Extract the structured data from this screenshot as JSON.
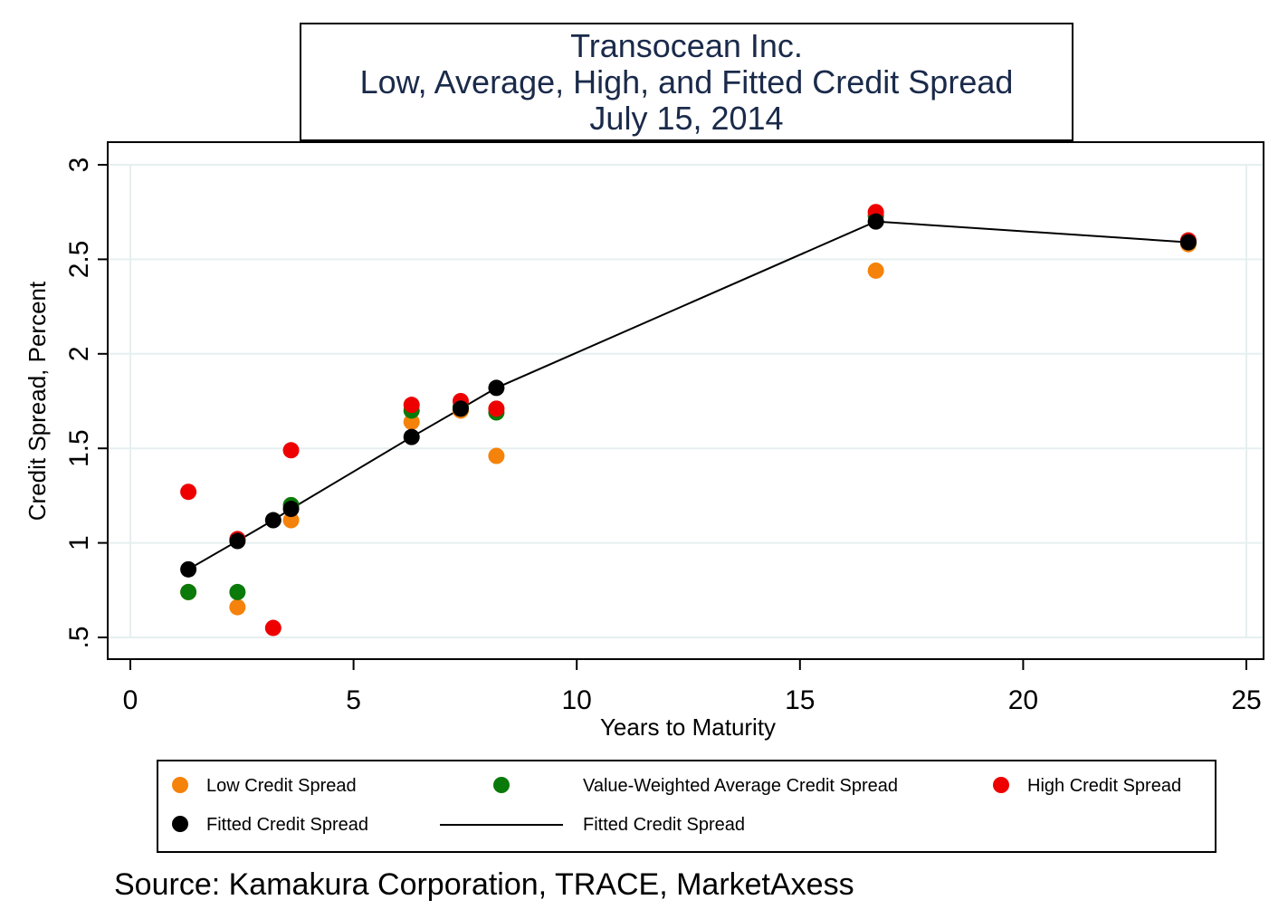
{
  "chart_data": {
    "type": "scatter",
    "title": [
      "Transocean Inc.",
      "Low, Average, High, and Fitted Credit Spread",
      "July 15, 2014"
    ],
    "xlabel": "Years to Maturity",
    "ylabel": "Credit Spread, Percent",
    "xlim": [
      0,
      25
    ],
    "ylim": [
      0.5,
      3
    ],
    "xticks": [
      "0",
      "5",
      "10",
      "15",
      "20",
      "25"
    ],
    "yticks": [
      ".5",
      "1",
      "1.5",
      "2",
      "2.5",
      "3"
    ],
    "grid": true,
    "legend_placement": "bottom",
    "source": "Source: Kamakura Corporation, TRACE, MarketAxess",
    "series": [
      {
        "name": "Low Credit Spread",
        "color": "#f5820a",
        "marker": "dot",
        "points": [
          [
            1.3,
            0.74
          ],
          [
            2.4,
            0.66
          ],
          [
            3.6,
            1.12
          ],
          [
            6.3,
            1.64
          ],
          [
            7.4,
            1.7
          ],
          [
            8.2,
            1.46
          ],
          [
            16.7,
            2.44
          ],
          [
            23.7,
            2.58
          ]
        ]
      },
      {
        "name": "Value-Weighted Average Credit Spread",
        "color": "#0a7a0a",
        "marker": "dot",
        "points": [
          [
            1.3,
            0.74
          ],
          [
            2.4,
            0.74
          ],
          [
            3.6,
            1.2
          ],
          [
            6.3,
            1.7
          ],
          [
            7.4,
            1.72
          ],
          [
            8.2,
            1.69
          ],
          [
            16.7,
            2.73
          ],
          [
            23.7,
            2.59
          ]
        ]
      },
      {
        "name": "High Credit Spread",
        "color": "#ee0000",
        "marker": "dot",
        "points": [
          [
            1.3,
            1.27
          ],
          [
            2.4,
            1.02
          ],
          [
            3.2,
            0.55
          ],
          [
            3.6,
            1.49
          ],
          [
            6.3,
            1.73
          ],
          [
            7.4,
            1.75
          ],
          [
            8.2,
            1.71
          ],
          [
            16.7,
            2.75
          ],
          [
            23.7,
            2.6
          ]
        ]
      },
      {
        "name": "Fitted Credit Spread",
        "color": "#000000",
        "marker": "dot",
        "points": [
          [
            1.3,
            0.86
          ],
          [
            2.4,
            1.01
          ],
          [
            3.2,
            1.12
          ],
          [
            3.6,
            1.18
          ],
          [
            6.3,
            1.56
          ],
          [
            7.4,
            1.71
          ],
          [
            8.2,
            1.82
          ],
          [
            16.7,
            2.7
          ],
          [
            23.7,
            2.59
          ]
        ]
      },
      {
        "name": "Fitted Credit Spread",
        "color": "#000000",
        "marker": "line",
        "points": [
          [
            1.3,
            0.86
          ],
          [
            2.4,
            1.01
          ],
          [
            3.2,
            1.12
          ],
          [
            3.6,
            1.18
          ],
          [
            6.3,
            1.56
          ],
          [
            7.4,
            1.71
          ],
          [
            8.2,
            1.82
          ],
          [
            16.7,
            2.7
          ],
          [
            23.7,
            2.59
          ]
        ]
      }
    ]
  }
}
